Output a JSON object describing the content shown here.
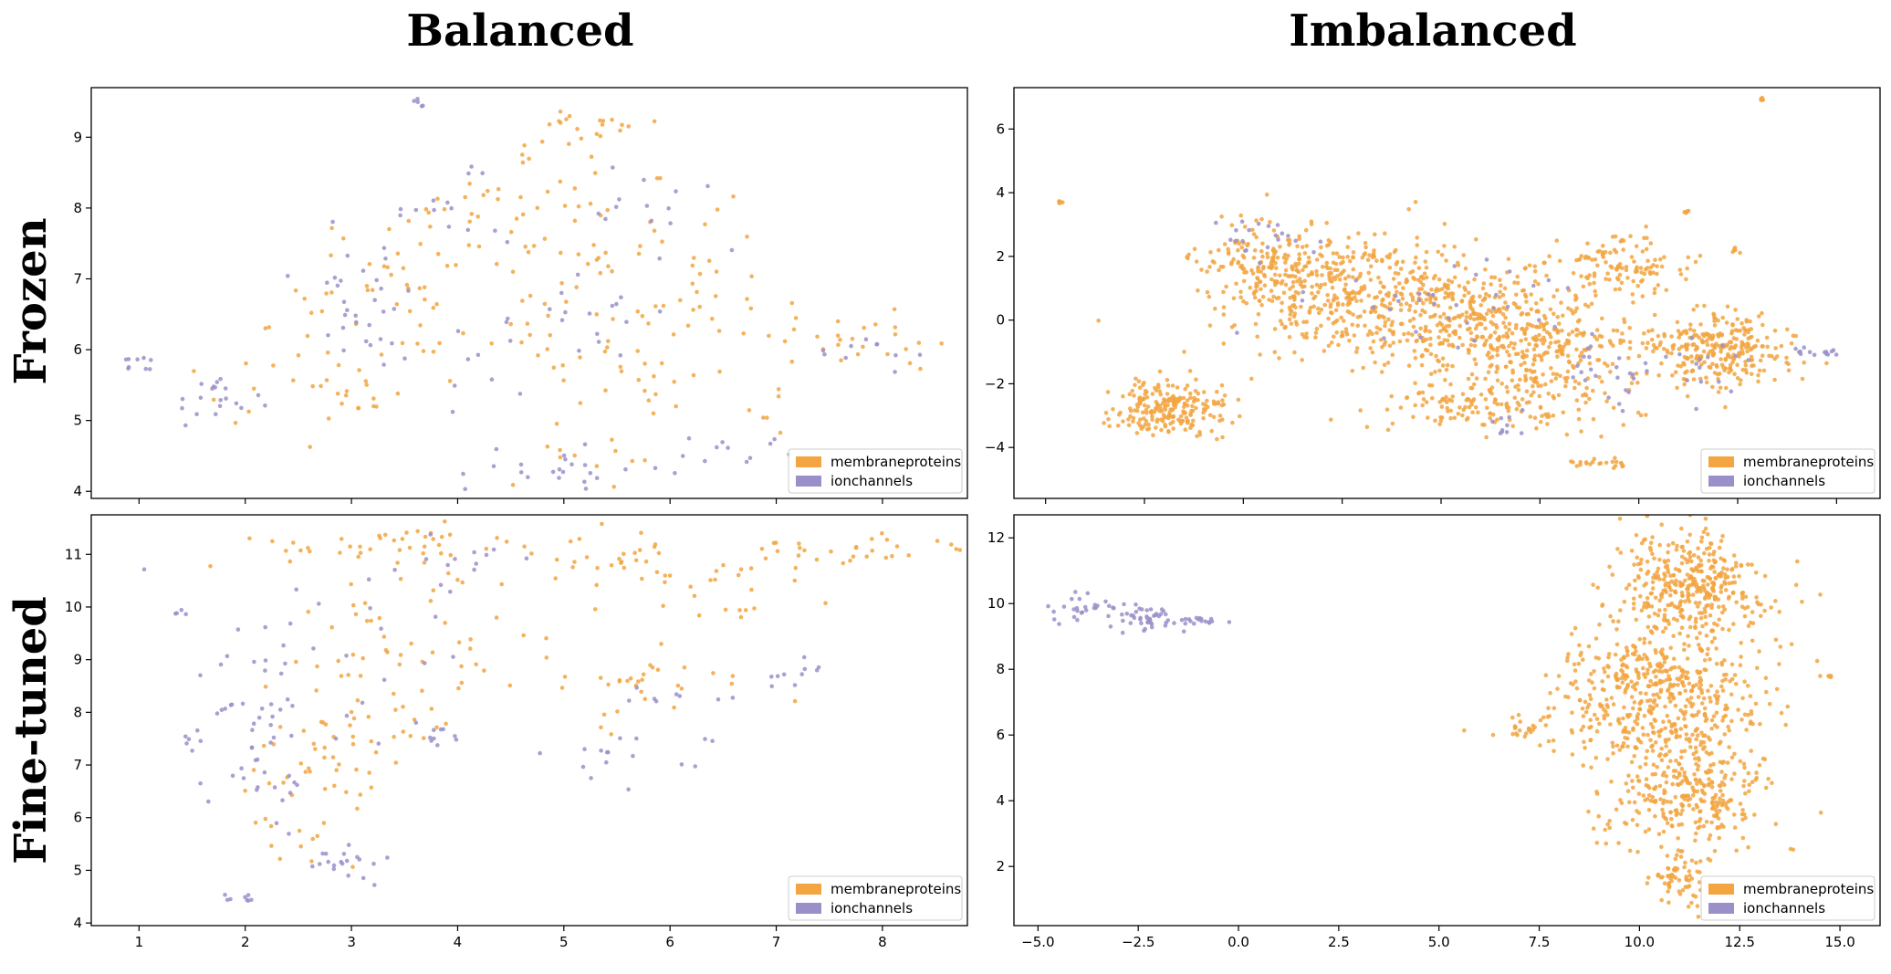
{
  "column_titles": [
    "Balanced",
    "Imbalanced"
  ],
  "row_titles": [
    "Frozen",
    "Fine-tuned"
  ],
  "legend": {
    "entries": [
      {
        "label": "membraneproteins",
        "color": "#f2a541"
      },
      {
        "label": "ionchannels",
        "color": "#9b8fc9"
      }
    ],
    "placement": "lower-right"
  },
  "chart_data": [
    {
      "id": "frozen-balanced",
      "type": "scatter",
      "title": "",
      "xlabel": "",
      "ylabel": "",
      "xlim": [
        0.55,
        8.8
      ],
      "ylim": [
        3.9,
        9.7
      ],
      "xticks": [
        1,
        2,
        3,
        4,
        5,
        6,
        7,
        8
      ],
      "xtick_labels_visible": false,
      "yticks": [
        4,
        5,
        6,
        7,
        8,
        9
      ],
      "grid": false,
      "series": [
        {
          "name": "membraneproteins",
          "color": "#f2a541",
          "clusters": [
            {
              "cx": 5.2,
              "cy": 9.15,
              "sx": 0.35,
              "sy": 0.12,
              "n": 18
            },
            {
              "cx": 4.6,
              "cy": 8.2,
              "sx": 0.55,
              "sy": 0.4,
              "n": 30
            },
            {
              "cx": 3.5,
              "cy": 7.3,
              "sx": 0.5,
              "sy": 0.5,
              "n": 35
            },
            {
              "cx": 5.5,
              "cy": 7.2,
              "sx": 0.7,
              "sy": 0.6,
              "n": 45
            },
            {
              "cx": 6.6,
              "cy": 6.4,
              "sx": 0.5,
              "sy": 0.5,
              "n": 30
            },
            {
              "cx": 7.7,
              "cy": 6.1,
              "sx": 0.4,
              "sy": 0.2,
              "n": 22
            },
            {
              "cx": 2.4,
              "cy": 5.7,
              "sx": 0.4,
              "sy": 0.4,
              "n": 22
            },
            {
              "cx": 3.0,
              "cy": 5.2,
              "sx": 0.2,
              "sy": 0.2,
              "n": 12
            },
            {
              "cx": 5.7,
              "cy": 5.6,
              "sx": 0.5,
              "sy": 0.4,
              "n": 20
            },
            {
              "cx": 4.2,
              "cy": 6.2,
              "sx": 0.6,
              "sy": 0.4,
              "n": 22
            },
            {
              "cx": 5.2,
              "cy": 4.4,
              "sx": 0.4,
              "sy": 0.25,
              "n": 12
            }
          ]
        },
        {
          "name": "ionchannels",
          "color": "#9b8fc9",
          "clusters": [
            {
              "cx": 1.0,
              "cy": 5.8,
              "sx": 0.07,
              "sy": 0.05,
              "n": 9
            },
            {
              "cx": 1.75,
              "cy": 5.3,
              "sx": 0.2,
              "sy": 0.2,
              "n": 20
            },
            {
              "cx": 3.62,
              "cy": 9.47,
              "sx": 0.05,
              "sy": 0.04,
              "n": 5
            },
            {
              "cx": 3.2,
              "cy": 6.8,
              "sx": 0.5,
              "sy": 0.5,
              "n": 30
            },
            {
              "cx": 3.9,
              "cy": 8.1,
              "sx": 0.3,
              "sy": 0.3,
              "n": 14
            },
            {
              "cx": 4.4,
              "cy": 5.9,
              "sx": 0.5,
              "sy": 0.3,
              "n": 12
            },
            {
              "cx": 5.0,
              "cy": 4.3,
              "sx": 0.4,
              "sy": 0.2,
              "n": 22
            },
            {
              "cx": 5.6,
              "cy": 8.1,
              "sx": 0.35,
              "sy": 0.3,
              "n": 12
            },
            {
              "cx": 6.6,
              "cy": 4.6,
              "sx": 0.3,
              "sy": 0.15,
              "n": 12
            },
            {
              "cx": 8.0,
              "cy": 6.0,
              "sx": 0.25,
              "sy": 0.12,
              "n": 10
            },
            {
              "cx": 5.4,
              "cy": 6.6,
              "sx": 0.6,
              "sy": 0.5,
              "n": 16
            }
          ]
        }
      ]
    },
    {
      "id": "frozen-imbalanced",
      "type": "scatter",
      "title": "",
      "xlabel": "",
      "ylabel": "",
      "xlim": [
        -5.8,
        16.1
      ],
      "ylim": [
        -5.6,
        7.3
      ],
      "xticks": [
        -5.0,
        -2.5,
        0.0,
        2.5,
        5.0,
        7.5,
        10.0,
        12.5,
        15.0
      ],
      "xtick_labels_visible": false,
      "yticks": [
        -4,
        -2,
        0,
        2,
        4,
        6
      ],
      "grid": false,
      "series": [
        {
          "name": "membraneproteins",
          "color": "#f2a541",
          "clusters": [
            {
              "cx": -4.6,
              "cy": 3.7,
              "sx": 0.05,
              "sy": 0.04,
              "n": 6
            },
            {
              "cx": 13.1,
              "cy": 6.95,
              "sx": 0.05,
              "sy": 0.04,
              "n": 5
            },
            {
              "cx": -1.8,
              "cy": -2.8,
              "sx": 0.7,
              "sy": 0.45,
              "n": 220
            },
            {
              "cx": 0.6,
              "cy": 1.7,
              "sx": 0.9,
              "sy": 0.7,
              "n": 160
            },
            {
              "cx": 2.5,
              "cy": 0.8,
              "sx": 1.4,
              "sy": 0.9,
              "n": 340
            },
            {
              "cx": 5.3,
              "cy": 0.1,
              "sx": 1.5,
              "sy": 0.9,
              "n": 320
            },
            {
              "cx": 7.6,
              "cy": -0.8,
              "sx": 1.2,
              "sy": 0.8,
              "n": 240
            },
            {
              "cx": 9.5,
              "cy": 1.7,
              "sx": 0.9,
              "sy": 0.5,
              "n": 120
            },
            {
              "cx": 12.0,
              "cy": -0.9,
              "sx": 1.0,
              "sy": 0.6,
              "n": 280
            },
            {
              "cx": 6.5,
              "cy": -2.6,
              "sx": 1.5,
              "sy": 0.5,
              "n": 160
            },
            {
              "cx": 9.0,
              "cy": -4.5,
              "sx": 0.4,
              "sy": 0.08,
              "n": 22
            },
            {
              "cx": 11.2,
              "cy": 3.45,
              "sx": 0.05,
              "sy": 0.05,
              "n": 5
            },
            {
              "cx": 12.4,
              "cy": 2.2,
              "sx": 0.08,
              "sy": 0.06,
              "n": 6
            }
          ]
        },
        {
          "name": "ionchannels",
          "color": "#9b8fc9",
          "clusters": [
            {
              "cx": 0.3,
              "cy": 2.5,
              "sx": 0.6,
              "sy": 0.5,
              "n": 20
            },
            {
              "cx": 5.0,
              "cy": 0.5,
              "sx": 1.8,
              "sy": 0.8,
              "n": 35
            },
            {
              "cx": 9.2,
              "cy": -1.8,
              "sx": 0.6,
              "sy": 0.5,
              "n": 22
            },
            {
              "cx": 14.3,
              "cy": -1.0,
              "sx": 0.4,
              "sy": 0.08,
              "n": 14
            },
            {
              "cx": 11.5,
              "cy": -1.5,
              "sx": 0.7,
              "sy": 0.5,
              "n": 16
            },
            {
              "cx": 6.7,
              "cy": -3.3,
              "sx": 0.3,
              "sy": 0.2,
              "n": 10
            }
          ]
        }
      ]
    },
    {
      "id": "finetuned-balanced",
      "type": "scatter",
      "title": "",
      "xlabel": "",
      "ylabel": "",
      "xlim": [
        0.55,
        8.8
      ],
      "ylim": [
        3.95,
        11.75
      ],
      "xticks": [
        1,
        2,
        3,
        4,
        5,
        6,
        7,
        8
      ],
      "xtick_labels_visible": true,
      "yticks": [
        4,
        5,
        6,
        7,
        8,
        9,
        10,
        11
      ],
      "grid": false,
      "series": [
        {
          "name": "membraneproteins",
          "color": "#f2a541",
          "clusters": [
            {
              "cx": 3.2,
              "cy": 11.1,
              "sx": 0.6,
              "sy": 0.2,
              "n": 40
            },
            {
              "cx": 5.2,
              "cy": 10.9,
              "sx": 0.7,
              "sy": 0.25,
              "n": 35
            },
            {
              "cx": 7.8,
              "cy": 11.1,
              "sx": 0.5,
              "sy": 0.15,
              "n": 30
            },
            {
              "cx": 3.6,
              "cy": 9.0,
              "sx": 0.6,
              "sy": 0.8,
              "n": 55
            },
            {
              "cx": 5.7,
              "cy": 8.4,
              "sx": 0.5,
              "sy": 0.6,
              "n": 30
            },
            {
              "cx": 2.6,
              "cy": 6.8,
              "sx": 0.4,
              "sy": 0.8,
              "n": 40
            },
            {
              "cx": 6.4,
              "cy": 10.2,
              "sx": 0.5,
              "sy": 0.4,
              "n": 20
            },
            {
              "cx": 3.2,
              "cy": 7.5,
              "sx": 0.4,
              "sy": 0.5,
              "n": 20
            }
          ]
        },
        {
          "name": "ionchannels",
          "color": "#9b8fc9",
          "clusters": [
            {
              "cx": 1.37,
              "cy": 9.87,
              "sx": 0.04,
              "sy": 0.03,
              "n": 4
            },
            {
              "cx": 1.5,
              "cy": 7.5,
              "sx": 0.05,
              "sy": 0.1,
              "n": 6
            },
            {
              "cx": 1.95,
              "cy": 4.45,
              "sx": 0.12,
              "sy": 0.07,
              "n": 8
            },
            {
              "cx": 2.1,
              "cy": 7.3,
              "sx": 0.25,
              "sy": 1.2,
              "n": 45
            },
            {
              "cx": 2.9,
              "cy": 5.3,
              "sx": 0.3,
              "sy": 0.3,
              "n": 20
            },
            {
              "cx": 3.8,
              "cy": 7.6,
              "sx": 0.15,
              "sy": 0.3,
              "n": 10
            },
            {
              "cx": 4.0,
              "cy": 10.9,
              "sx": 0.3,
              "sy": 0.3,
              "n": 12
            },
            {
              "cx": 5.5,
              "cy": 7.2,
              "sx": 0.5,
              "sy": 0.3,
              "n": 16
            },
            {
              "cx": 7.2,
              "cy": 8.6,
              "sx": 0.15,
              "sy": 0.2,
              "n": 10
            },
            {
              "cx": 6.1,
              "cy": 8.3,
              "sx": 0.3,
              "sy": 0.1,
              "n": 8
            },
            {
              "cx": 3.0,
              "cy": 9.3,
              "sx": 0.6,
              "sy": 0.8,
              "n": 22
            }
          ]
        }
      ]
    },
    {
      "id": "finetuned-imbalanced",
      "type": "scatter",
      "title": "",
      "xlabel": "",
      "ylabel": "",
      "xlim": [
        -5.6,
        16.0
      ],
      "ylim": [
        0.2,
        12.7
      ],
      "xticks": [
        -5.0,
        -2.5,
        0.0,
        2.5,
        5.0,
        7.5,
        10.0,
        12.5,
        15.0
      ],
      "xtick_labels_visible": true,
      "yticks": [
        2,
        4,
        6,
        8,
        10,
        12
      ],
      "grid": false,
      "series": [
        {
          "name": "membraneproteins",
          "color": "#f2a541",
          "clusters": [
            {
              "cx": 11.3,
              "cy": 10.6,
              "sx": 0.9,
              "sy": 0.8,
              "n": 380
            },
            {
              "cx": 10.5,
              "cy": 7.2,
              "sx": 1.3,
              "sy": 1.1,
              "n": 520
            },
            {
              "cx": 11.2,
              "cy": 4.3,
              "sx": 1.0,
              "sy": 0.9,
              "n": 320
            },
            {
              "cx": 11.0,
              "cy": 1.6,
              "sx": 0.3,
              "sy": 0.4,
              "n": 60
            },
            {
              "cx": 7.3,
              "cy": 6.2,
              "sx": 0.35,
              "sy": 0.2,
              "n": 25
            },
            {
              "cx": 14.7,
              "cy": 7.8,
              "sx": 0.05,
              "sy": 0.03,
              "n": 4
            },
            {
              "cx": 13.8,
              "cy": 2.5,
              "sx": 0.03,
              "sy": 0.03,
              "n": 2
            }
          ]
        },
        {
          "name": "ionchannels",
          "color": "#9b8fc9",
          "clusters": [
            {
              "cx": -3.8,
              "cy": 9.8,
              "sx": 0.6,
              "sy": 0.2,
              "n": 30
            },
            {
              "cx": -2.3,
              "cy": 9.5,
              "sx": 0.5,
              "sy": 0.2,
              "n": 40
            },
            {
              "cx": -0.8,
              "cy": 9.48,
              "sx": 0.4,
              "sy": 0.05,
              "n": 18
            }
          ]
        }
      ]
    }
  ]
}
